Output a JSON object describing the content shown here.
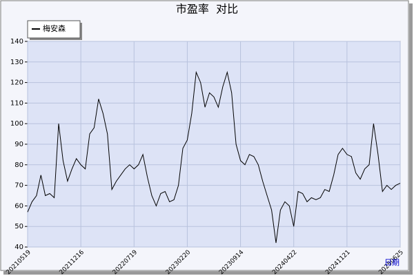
{
  "chart_data": {
    "type": "line",
    "title": "市盈率  对比",
    "x_label": "日期",
    "categories": [
      "20210519",
      null,
      null,
      null,
      null,
      null,
      null,
      null,
      null,
      null,
      null,
      null,
      "20211216",
      null,
      null,
      null,
      null,
      null,
      null,
      null,
      null,
      null,
      null,
      null,
      "20220719",
      null,
      null,
      null,
      null,
      null,
      null,
      null,
      null,
      null,
      null,
      null,
      "20230220",
      null,
      null,
      null,
      null,
      null,
      null,
      null,
      null,
      null,
      null,
      null,
      "20230914",
      null,
      null,
      null,
      null,
      null,
      null,
      null,
      null,
      null,
      null,
      null,
      "20240422",
      null,
      null,
      null,
      null,
      null,
      null,
      null,
      null,
      null,
      null,
      null,
      "20241121",
      null,
      null,
      null,
      null,
      null,
      null,
      null,
      null,
      null,
      null,
      null,
      "20250625"
    ],
    "series": [
      {
        "name": "梅安森",
        "color": "#000000",
        "values": [
          57,
          62,
          65,
          75,
          65,
          66,
          64,
          100,
          82,
          72,
          78,
          83,
          80,
          78,
          95,
          98,
          112,
          105,
          95,
          68,
          72,
          75,
          78,
          80,
          78,
          80,
          85,
          74,
          65,
          60,
          66,
          67,
          62,
          63,
          70,
          88,
          92,
          105,
          125,
          120,
          108,
          115,
          113,
          108,
          118,
          125,
          115,
          90,
          82,
          80,
          85,
          84,
          80,
          72,
          65,
          58,
          42,
          58,
          62,
          60,
          50,
          67,
          66,
          62,
          64,
          63,
          64,
          68,
          67,
          75,
          85,
          88,
          85,
          84,
          76,
          73,
          78,
          80,
          100,
          85,
          67,
          70,
          68,
          70,
          71
        ]
      }
    ],
    "ylim": [
      40,
      140
    ],
    "yticks": [
      40,
      50,
      60,
      70,
      80,
      90,
      100,
      110,
      120,
      130,
      140
    ],
    "grid": true,
    "legend": "top-left"
  }
}
